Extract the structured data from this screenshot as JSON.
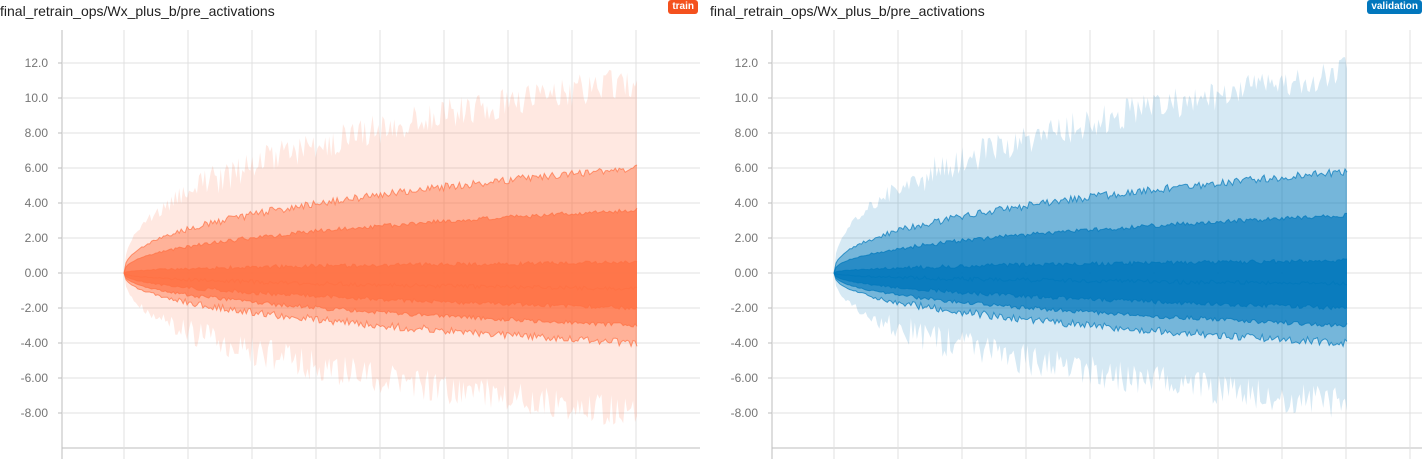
{
  "charts": [
    {
      "title": "final_retrain_ops/Wx_plus_b/pre_activations",
      "run_badge": "train",
      "color": "#ff7043",
      "badge_color": "#f4511e"
    },
    {
      "title": "final_retrain_ops/Wx_plus_b/pre_activations",
      "run_badge": "validation",
      "color": "#0077bb",
      "badge_color": "#0277bd"
    }
  ],
  "chart_data": [
    {
      "type": "area",
      "title": "final_retrain_ops/Wx_plus_b/pre_activations",
      "series_name": "train",
      "yticks": [
        "12.0",
        "10.0",
        "8.00",
        "6.00",
        "4.00",
        "2.00",
        "0.00",
        "-2.00",
        "-4.00",
        "-6.00",
        "-8.00"
      ],
      "ylim": [
        -10,
        14
      ],
      "grid": true,
      "band_quantiles": [
        "min",
        "p7",
        "p16",
        "p31",
        "p50",
        "p69",
        "p84",
        "p93",
        "max"
      ],
      "final_values": [
        -8.0,
        -4.0,
        -3.0,
        -2.0,
        -0.9,
        0.6,
        3.6,
        6.0,
        11.0
      ],
      "initial_value": 0.0
    },
    {
      "type": "area",
      "title": "final_retrain_ops/Wx_plus_b/pre_activations",
      "series_name": "validation",
      "yticks": [
        "12.0",
        "10.0",
        "8.00",
        "6.00",
        "4.00",
        "2.00",
        "0.00",
        "-2.00",
        "-4.00",
        "-6.00",
        "-8.00"
      ],
      "ylim": [
        -10,
        14
      ],
      "grid": true,
      "band_quantiles": [
        "min",
        "p7",
        "p16",
        "p31",
        "p50",
        "p69",
        "p84",
        "p93",
        "max"
      ],
      "final_values": [
        -7.5,
        -4.0,
        -3.0,
        -2.0,
        -0.6,
        0.7,
        3.3,
        5.8,
        11.5
      ],
      "initial_value": 0.0
    }
  ]
}
